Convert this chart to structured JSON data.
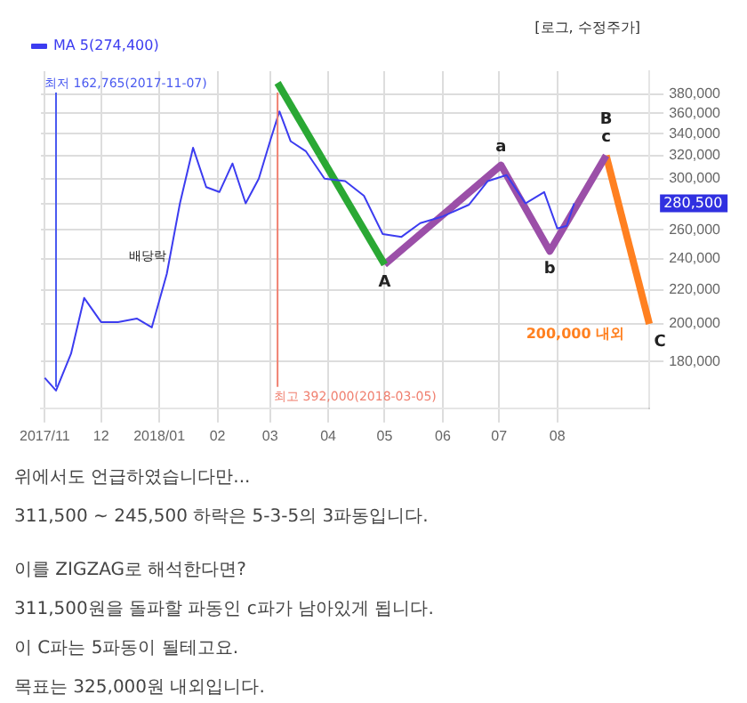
{
  "chart_data": {
    "type": "line",
    "log": "y",
    "grid": true,
    "legend": "top left",
    "marker": "none",
    "xlim": [
      "2017-10-30",
      "2018-09-19"
    ],
    "xticks": [
      {
        "value": "2017-11-01",
        "label": "2017/11"
      },
      {
        "value": "2017-12-01",
        "label": "12"
      },
      {
        "value": "2018-01-01",
        "label": "2018/01"
      },
      {
        "value": "2018-02-01",
        "label": "02"
      },
      {
        "value": "2018-03-01",
        "label": "03"
      },
      {
        "value": "2018-04-01",
        "label": "04"
      },
      {
        "value": "2018-05-01",
        "label": "05"
      },
      {
        "value": "2018-06-01",
        "label": "06"
      },
      {
        "value": "2018-07-01",
        "label": "07"
      },
      {
        "value": "2018-08-01",
        "label": "08"
      }
    ],
    "ylim": [
      158000,
      405000
    ],
    "yticks": [
      {
        "value": 180000,
        "label": "180,000"
      },
      {
        "value": 200000,
        "label": "200,000"
      },
      {
        "value": 220000,
        "label": "220,000"
      },
      {
        "value": 240000,
        "label": "240,000"
      },
      {
        "value": 260000,
        "label": "260,000"
      },
      {
        "value": 280000,
        "label": null
      },
      {
        "value": 300000,
        "label": "300,000"
      },
      {
        "value": 320000,
        "label": "320,000"
      },
      {
        "value": 340000,
        "label": "340,000"
      },
      {
        "value": 360000,
        "label": "360,000"
      },
      {
        "value": 380000,
        "label": "380,000"
      }
    ],
    "series": [
      {
        "name": "MA 5(274,400)",
        "color": "#3c3cf0",
        "line_style": "solid",
        "x": [
          "2017-11-01",
          "2017-11-07",
          "2017-11-15",
          "2017-11-22",
          "2017-12-01",
          "2017-12-10",
          "2017-12-20",
          "2017-12-28",
          "2018-01-05",
          "2018-01-12",
          "2018-01-19",
          "2018-01-26",
          "2018-02-02",
          "2018-02-09",
          "2018-02-16",
          "2018-02-23",
          "2018-03-01",
          "2018-03-06",
          "2018-03-12",
          "2018-03-20",
          "2018-03-30",
          "2018-04-10",
          "2018-04-20",
          "2018-04-30",
          "2018-05-10",
          "2018-05-20",
          "2018-06-01",
          "2018-06-15",
          "2018-06-25",
          "2018-07-05",
          "2018-07-15",
          "2018-07-25",
          "2018-08-01",
          "2018-08-06",
          "2018-08-10"
        ],
        "values": [
          172000,
          166000,
          184000,
          215000,
          201000,
          201000,
          203000,
          198000,
          230000,
          280000,
          327000,
          293000,
          289000,
          313000,
          280000,
          300000,
          333000,
          362000,
          333000,
          324000,
          300000,
          298000,
          286000,
          257000,
          255000,
          265000,
          270000,
          279000,
          298000,
          303000,
          280000,
          289000,
          261000,
          263000,
          280000
        ]
      },
      {
        "color": "#2aa834",
        "line_style": "solid",
        "x": [
          "2018-03-05",
          "2018-05-01"
        ],
        "values": [
          392000,
          236000
        ]
      },
      {
        "color": "#9b4fa8",
        "line_style": "solid",
        "x": [
          "2018-05-01",
          "2018-07-02",
          "2018-07-28",
          "2018-08-27"
        ],
        "values": [
          236000,
          311500,
          245000,
          320000
        ]
      },
      {
        "color": "#ff8020",
        "line_style": "solid",
        "x": [
          "2018-08-27",
          "2018-09-19"
        ],
        "values": [
          320000,
          200000
        ]
      }
    ],
    "ref_lines": [
      {
        "axis": "x",
        "value": "2017-11-07",
        "label": "최저 162,765(2017-11-07)",
        "color": "#4a5af0"
      },
      {
        "axis": "x",
        "value": "2018-03-05",
        "label": "최고 392,000(2018-03-05)",
        "color": "#f08070"
      }
    ],
    "annotations": [
      "[로그, 수정주가]",
      "280,500",
      "배당락",
      "200,000 내외",
      {
        "text": "A",
        "x": "2018-05-01",
        "y": 236000
      },
      {
        "text": "a",
        "x": "2018-07-02",
        "y": 311500
      },
      {
        "text": "b",
        "x": "2018-07-28",
        "y": 245000
      },
      {
        "text": "c",
        "x": "2018-08-27",
        "y": 320000
      },
      {
        "text": "B",
        "x": "2018-08-27",
        "y": 320000
      },
      {
        "text": "C",
        "x": "2018-09-19",
        "y": 200000
      },
      "위에서도 언급하였습니다만...",
      "311,500 ~ 245,500 하락은 5-3-5의 3파동입니다.",
      "이를 ZIGZAG로 해석한다면?",
      "311,500원을 돌파할 파동인 c파가 남아있게 됩니다.",
      "이 C파는 5파동이 될테고요.",
      "목표는 325,000원 내외입니다."
    ]
  }
}
